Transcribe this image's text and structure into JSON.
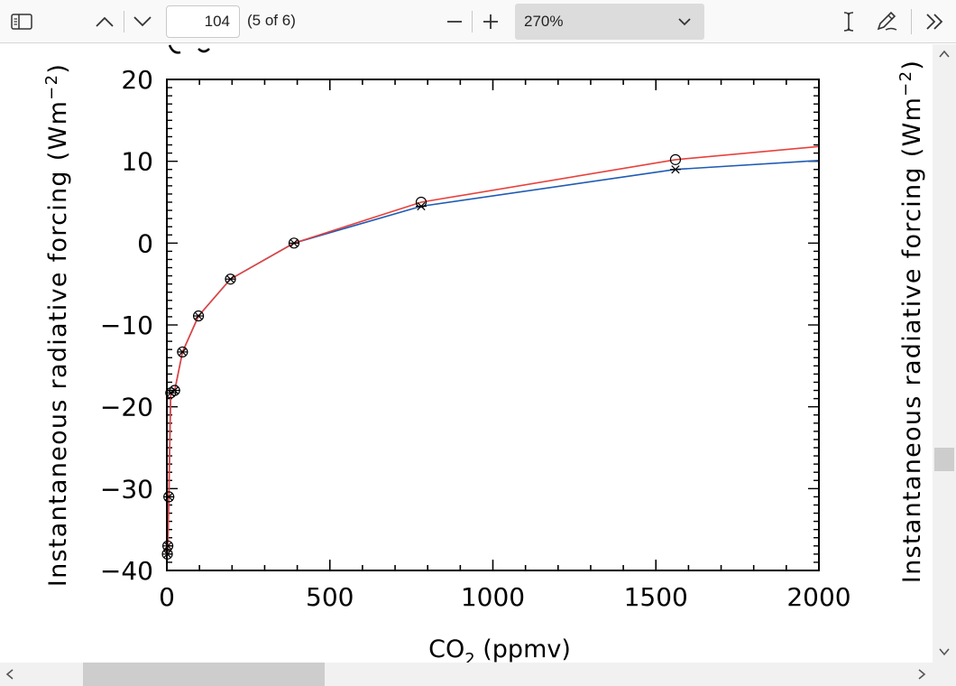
{
  "toolbar": {
    "page_number": "104",
    "page_count": "(5 of 6)",
    "zoom": "270%",
    "icons": [
      "sidebar-toggle-icon",
      "chevron-up-icon",
      "chevron-down-icon",
      "zoom-out-icon",
      "zoom-in-icon",
      "chevron-down-icon",
      "text-cursor-icon",
      "pen-icon",
      "double-chevron-right-icon"
    ]
  },
  "chart_data": {
    "type": "line",
    "title": "",
    "xlabel": "CO₂ (ppmv)",
    "xlabel_main": "CO",
    "xlabel_sub": "2",
    "xlabel_tail": " (ppmv)",
    "ylabel": "Instantaneous radiative forcing (Wm⁻²)",
    "ylabel_main": "Instantaneous radiative forcing (Wm",
    "ylabel_sup": "−2",
    "ylabel_tail": ")",
    "xlim": [
      0,
      2000
    ],
    "ylim": [
      -40,
      20
    ],
    "x_ticks": [
      0,
      500,
      1000,
      1500,
      2000
    ],
    "x_tick_labels": [
      "0",
      "500",
      "1000",
      "1500",
      "2000"
    ],
    "y_ticks": [
      -40,
      -30,
      -20,
      -10,
      0,
      10,
      20
    ],
    "y_tick_labels": [
      "−40",
      "−30",
      "−20",
      "−10",
      "0",
      "10",
      "20"
    ],
    "grid": false,
    "series": [
      {
        "color": "#e8413c",
        "marker": "circle",
        "x": [
          1.5,
          3,
          6,
          12,
          24,
          48,
          97,
          195,
          390,
          780,
          1560,
          2000
        ],
        "y": [
          -38,
          -37,
          -31,
          -18.3,
          -18,
          -13.3,
          -8.9,
          -4.4,
          0,
          5,
          10.2,
          11.8
        ],
        "marker_count": 11
      },
      {
        "color": "#1f5bb5",
        "marker": "asterisk",
        "x": [
          1.5,
          3,
          6,
          12,
          24,
          48,
          97,
          195,
          390,
          780,
          1560,
          2000
        ],
        "y": [
          -38,
          -37,
          -31,
          -18.3,
          -18,
          -13.3,
          -8.9,
          -4.4,
          0,
          4.5,
          9,
          10.1
        ],
        "marker_count": 11
      }
    ]
  }
}
